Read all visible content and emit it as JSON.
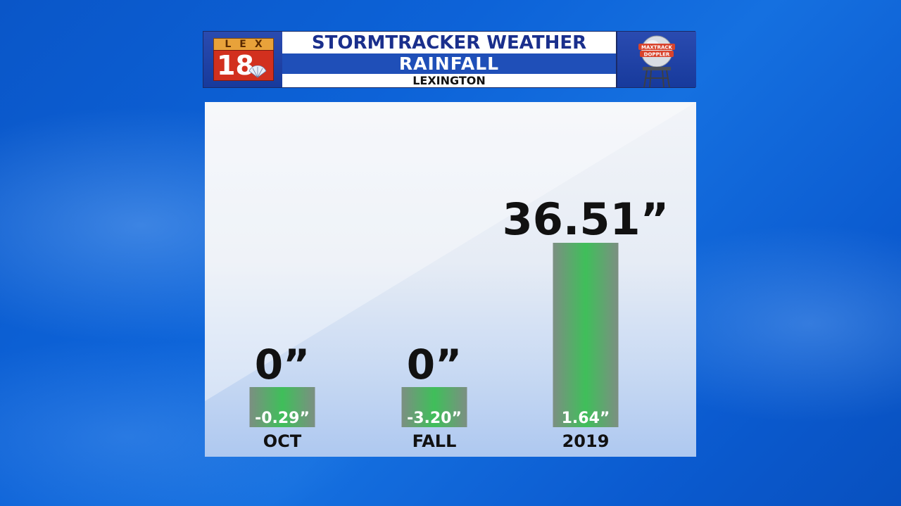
{
  "header": {
    "logo_lex": "LEX",
    "logo_num": "18",
    "title": "STORMTRACKER WEATHER",
    "subtitle": "RAINFALL",
    "location": "LEXINGTON",
    "radar_badge_top": "MAXTRACK",
    "radar_badge_bottom": "DOPPLER"
  },
  "colors": {
    "bar": "#3fbf5a",
    "bar_edge": "#6f8f78",
    "header_blue": "#1f4fb8",
    "title_text": "#1a2f8c"
  },
  "chart_data": {
    "type": "bar",
    "categories": [
      "OCT",
      "FALL",
      "2019"
    ],
    "values": [
      0,
      0,
      36.51
    ],
    "value_labels": [
      "0”",
      "0”",
      "36.51”"
    ],
    "departures": [
      -0.29,
      -3.2,
      1.64
    ],
    "departure_labels": [
      "-0.29”",
      "-3.20”",
      "1.64”"
    ],
    "ylim": [
      0,
      40
    ],
    "grid": false
  }
}
